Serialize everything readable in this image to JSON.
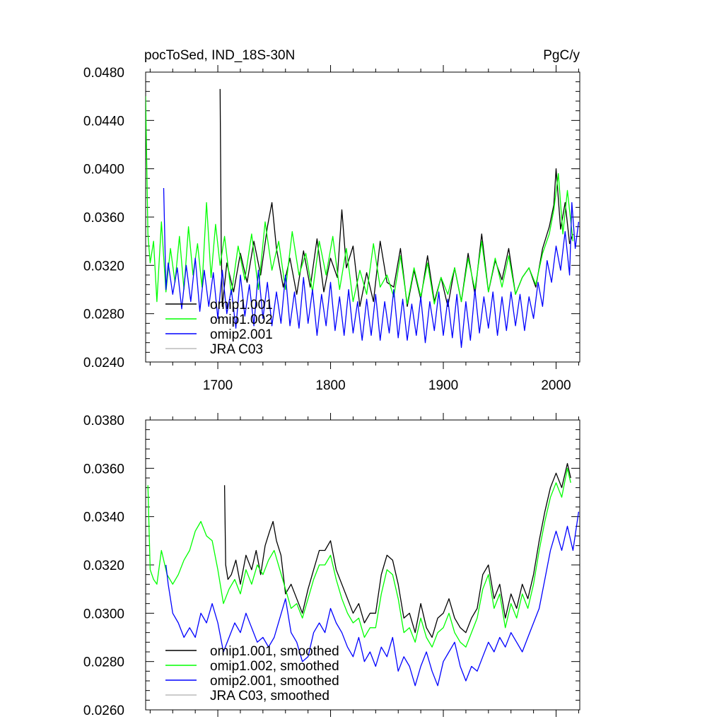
{
  "title": "pocToSed, IND_18S-30N",
  "units": "PgC/y",
  "chart_data": [
    {
      "type": "line",
      "xlim": [
        1636,
        2021
      ],
      "ylim": [
        0.024,
        0.048
      ],
      "xticks": [
        1700,
        1800,
        1900,
        2000
      ],
      "xtick_labels": [
        "1700",
        "1800",
        "1900",
        "2000"
      ],
      "yticks": [
        0.024,
        0.028,
        0.032,
        0.036,
        0.04,
        0.044,
        0.048
      ],
      "ytick_labels": [
        "0.0240",
        "0.0280",
        "0.0320",
        "0.0360",
        "0.0400",
        "0.0440",
        "0.0480"
      ],
      "legend_position": "bottom-left",
      "series": [
        {
          "name": "omip1.001",
          "color": "#000000",
          "x": [
            1702,
            1703,
            1704,
            1708,
            1714,
            1720,
            1726,
            1732,
            1738,
            1744,
            1748,
            1752,
            1758,
            1764,
            1770,
            1776,
            1782,
            1788,
            1794,
            1800,
            1806,
            1810,
            1814,
            1820,
            1826,
            1832,
            1838,
            1844,
            1850,
            1856,
            1862,
            1868,
            1874,
            1880,
            1886,
            1892,
            1898,
            1904,
            1910,
            1916,
            1922,
            1928,
            1934,
            1940,
            1946,
            1952,
            1958,
            1964,
            1970,
            1976,
            1982,
            1988,
            1994,
            1998,
            2000,
            2004,
            2008,
            2012,
            2015
          ],
          "y": [
            0.0466,
            0.0336,
            0.0286,
            0.0322,
            0.0298,
            0.033,
            0.0306,
            0.034,
            0.0312,
            0.0352,
            0.0372,
            0.0334,
            0.0302,
            0.0326,
            0.0296,
            0.0332,
            0.0302,
            0.0342,
            0.0298,
            0.0326,
            0.031,
            0.0366,
            0.0318,
            0.0336,
            0.0286,
            0.0314,
            0.029,
            0.034,
            0.0306,
            0.0302,
            0.0334,
            0.0286,
            0.0316,
            0.0292,
            0.0328,
            0.029,
            0.031,
            0.0286,
            0.0318,
            0.029,
            0.033,
            0.0296,
            0.0346,
            0.0298,
            0.0324,
            0.0308,
            0.0334,
            0.0296,
            0.031,
            0.0318,
            0.0302,
            0.0334,
            0.0352,
            0.037,
            0.04,
            0.035,
            0.0372,
            0.0338,
            0.0346
          ]
        },
        {
          "name": "omip1.002",
          "color": "#00ff00",
          "x": [
            1636,
            1638,
            1640,
            1643,
            1646,
            1650,
            1654,
            1658,
            1662,
            1666,
            1670,
            1674,
            1678,
            1682,
            1686,
            1690,
            1694,
            1698,
            1702,
            1706,
            1712,
            1718,
            1724,
            1730,
            1736,
            1742,
            1748,
            1754,
            1760,
            1766,
            1772,
            1778,
            1784,
            1790,
            1796,
            1802,
            1808,
            1814,
            1820,
            1826,
            1832,
            1838,
            1844,
            1850,
            1856,
            1862,
            1868,
            1874,
            1880,
            1886,
            1892,
            1898,
            1904,
            1910,
            1916,
            1922,
            1928,
            1934,
            1940,
            1946,
            1952,
            1958,
            1964,
            1970,
            1976,
            1982,
            1988,
            1994,
            1998,
            2002,
            2006,
            2010,
            2015
          ],
          "y": [
            0.046,
            0.0346,
            0.0322,
            0.034,
            0.029,
            0.0356,
            0.0298,
            0.0334,
            0.0306,
            0.0344,
            0.03,
            0.0352,
            0.0312,
            0.0338,
            0.0302,
            0.0372,
            0.031,
            0.0354,
            0.032,
            0.0344,
            0.0296,
            0.0336,
            0.0308,
            0.0346,
            0.03,
            0.0356,
            0.0316,
            0.034,
            0.03,
            0.0348,
            0.0312,
            0.033,
            0.0298,
            0.034,
            0.0312,
            0.0344,
            0.03,
            0.0334,
            0.029,
            0.0316,
            0.0296,
            0.0338,
            0.0302,
            0.0312,
            0.0294,
            0.0328,
            0.0288,
            0.0318,
            0.0294,
            0.0322,
            0.0288,
            0.031,
            0.0296,
            0.0318,
            0.029,
            0.0326,
            0.03,
            0.034,
            0.0298,
            0.0326,
            0.0302,
            0.0328,
            0.0296,
            0.031,
            0.0318,
            0.0304,
            0.033,
            0.0346,
            0.0366,
            0.0396,
            0.0346,
            0.0382,
            0.034
          ]
        },
        {
          "name": "omip2.001",
          "color": "#0000ff",
          "x": [
            1652,
            1654,
            1656,
            1660,
            1664,
            1668,
            1672,
            1676,
            1680,
            1684,
            1688,
            1692,
            1696,
            1700,
            1704,
            1708,
            1712,
            1716,
            1720,
            1724,
            1728,
            1732,
            1736,
            1740,
            1744,
            1748,
            1752,
            1756,
            1760,
            1764,
            1768,
            1772,
            1776,
            1780,
            1784,
            1788,
            1792,
            1796,
            1800,
            1804,
            1808,
            1812,
            1816,
            1820,
            1824,
            1828,
            1832,
            1836,
            1840,
            1844,
            1848,
            1852,
            1856,
            1860,
            1864,
            1868,
            1872,
            1876,
            1880,
            1884,
            1888,
            1892,
            1896,
            1900,
            1904,
            1908,
            1912,
            1916,
            1920,
            1924,
            1928,
            1932,
            1936,
            1940,
            1944,
            1948,
            1952,
            1956,
            1960,
            1964,
            1968,
            1972,
            1976,
            1980,
            1984,
            1988,
            1992,
            1996,
            2000,
            2004,
            2008,
            2012,
            2014,
            2017,
            2020
          ],
          "y": [
            0.0384,
            0.03,
            0.0322,
            0.0296,
            0.0318,
            0.0284,
            0.032,
            0.029,
            0.0326,
            0.0282,
            0.0316,
            0.0286,
            0.0314,
            0.0276,
            0.0316,
            0.028,
            0.03,
            0.0268,
            0.0312,
            0.0278,
            0.0304,
            0.027,
            0.0316,
            0.0276,
            0.0306,
            0.027,
            0.0298,
            0.0272,
            0.0312,
            0.027,
            0.0298,
            0.0268,
            0.031,
            0.0272,
            0.03,
            0.0262,
            0.0296,
            0.027,
            0.0306,
            0.0266,
            0.0294,
            0.0262,
            0.03,
            0.0264,
            0.029,
            0.0258,
            0.0292,
            0.0262,
            0.0296,
            0.0258,
            0.029,
            0.0264,
            0.03,
            0.026,
            0.0292,
            0.0258,
            0.0288,
            0.0262,
            0.0294,
            0.0256,
            0.029,
            0.0266,
            0.0298,
            0.0262,
            0.0292,
            0.026,
            0.0296,
            0.0252,
            0.029,
            0.0258,
            0.03,
            0.0264,
            0.0294,
            0.0268,
            0.0298,
            0.0262,
            0.0294,
            0.0266,
            0.0298,
            0.027,
            0.0296,
            0.0266,
            0.0294,
            0.0276,
            0.0306,
            0.0286,
            0.0324,
            0.0306,
            0.0336,
            0.0316,
            0.0348,
            0.0312,
            0.0372,
            0.0334,
            0.0356
          ]
        },
        {
          "name": "JRA C03",
          "color": "#bbbbbb",
          "x": [],
          "y": []
        }
      ]
    },
    {
      "type": "line",
      "xlim": [
        1636,
        2021
      ],
      "ylim": [
        0.026,
        0.038
      ],
      "xticks": [
        1700,
        1800,
        1900,
        2000
      ],
      "yticks": [
        0.026,
        0.028,
        0.03,
        0.032,
        0.034,
        0.036,
        0.038
      ],
      "ytick_labels": [
        "0.0260",
        "0.0280",
        "0.0300",
        "0.0320",
        "0.0340",
        "0.0360",
        "0.0380"
      ],
      "legend_position": "bottom-left",
      "series": [
        {
          "name": "omip1.001, smoothed",
          "color": "#000000",
          "x": [
            1706,
            1707,
            1709,
            1712,
            1716,
            1720,
            1725,
            1730,
            1734,
            1738,
            1742,
            1746,
            1749,
            1752,
            1756,
            1760,
            1765,
            1770,
            1775,
            1780,
            1785,
            1790,
            1795,
            1800,
            1805,
            1810,
            1815,
            1820,
            1825,
            1830,
            1835,
            1840,
            1845,
            1850,
            1855,
            1860,
            1865,
            1870,
            1875,
            1880,
            1885,
            1890,
            1895,
            1900,
            1905,
            1910,
            1915,
            1920,
            1925,
            1930,
            1935,
            1940,
            1945,
            1950,
            1955,
            1960,
            1965,
            1970,
            1975,
            1980,
            1985,
            1990,
            1995,
            2000,
            2005,
            2010,
            2013
          ],
          "y": [
            0.0353,
            0.032,
            0.0314,
            0.0316,
            0.0322,
            0.0312,
            0.0324,
            0.0318,
            0.0326,
            0.0316,
            0.0328,
            0.0334,
            0.0338,
            0.033,
            0.0324,
            0.0308,
            0.0312,
            0.0306,
            0.03,
            0.031,
            0.0318,
            0.0326,
            0.0326,
            0.033,
            0.0318,
            0.0312,
            0.0306,
            0.03,
            0.0304,
            0.0296,
            0.03,
            0.03,
            0.0316,
            0.0324,
            0.0322,
            0.0312,
            0.0298,
            0.03,
            0.0292,
            0.0304,
            0.0294,
            0.029,
            0.0298,
            0.03,
            0.0306,
            0.0298,
            0.0294,
            0.0292,
            0.0298,
            0.0302,
            0.0316,
            0.032,
            0.0306,
            0.0312,
            0.0298,
            0.0308,
            0.0302,
            0.0312,
            0.0306,
            0.0316,
            0.033,
            0.0342,
            0.0352,
            0.0358,
            0.0352,
            0.0362,
            0.0356
          ]
        },
        {
          "name": "omip1.002, smoothed",
          "color": "#00ff00",
          "x": [
            1638,
            1640,
            1643,
            1646,
            1650,
            1655,
            1660,
            1665,
            1670,
            1675,
            1680,
            1685,
            1690,
            1695,
            1700,
            1705,
            1710,
            1715,
            1720,
            1725,
            1730,
            1735,
            1740,
            1745,
            1750,
            1755,
            1760,
            1765,
            1770,
            1775,
            1780,
            1785,
            1790,
            1795,
            1800,
            1805,
            1810,
            1815,
            1820,
            1825,
            1830,
            1835,
            1840,
            1845,
            1850,
            1855,
            1860,
            1865,
            1870,
            1875,
            1880,
            1885,
            1890,
            1895,
            1900,
            1905,
            1910,
            1915,
            1920,
            1925,
            1930,
            1935,
            1940,
            1945,
            1950,
            1955,
            1960,
            1965,
            1970,
            1975,
            1980,
            1985,
            1990,
            1995,
            2000,
            2005,
            2010,
            2013
          ],
          "y": [
            0.0353,
            0.0318,
            0.0314,
            0.0312,
            0.0326,
            0.0316,
            0.0312,
            0.0316,
            0.0322,
            0.0326,
            0.0334,
            0.0338,
            0.0332,
            0.033,
            0.0318,
            0.0304,
            0.031,
            0.0314,
            0.0308,
            0.0318,
            0.0312,
            0.032,
            0.0316,
            0.0322,
            0.0326,
            0.0318,
            0.031,
            0.0302,
            0.0304,
            0.0298,
            0.0306,
            0.0314,
            0.032,
            0.032,
            0.0324,
            0.0314,
            0.0306,
            0.03,
            0.0296,
            0.0298,
            0.029,
            0.0294,
            0.0294,
            0.0308,
            0.0318,
            0.0316,
            0.0306,
            0.0292,
            0.0294,
            0.0288,
            0.0298,
            0.029,
            0.0286,
            0.0292,
            0.0294,
            0.03,
            0.0292,
            0.0288,
            0.0286,
            0.0292,
            0.0298,
            0.031,
            0.0316,
            0.0302,
            0.0308,
            0.0294,
            0.0304,
            0.0298,
            0.0308,
            0.0302,
            0.0312,
            0.0326,
            0.0338,
            0.0348,
            0.0354,
            0.0348,
            0.036,
            0.0354
          ]
        },
        {
          "name": "omip2.001, smoothed",
          "color": "#0000ff",
          "x": [
            1654,
            1656,
            1660,
            1665,
            1670,
            1675,
            1680,
            1685,
            1690,
            1695,
            1700,
            1705,
            1710,
            1715,
            1720,
            1725,
            1730,
            1735,
            1740,
            1745,
            1750,
            1755,
            1760,
            1765,
            1770,
            1775,
            1780,
            1785,
            1790,
            1795,
            1800,
            1805,
            1810,
            1815,
            1820,
            1825,
            1830,
            1835,
            1840,
            1845,
            1850,
            1855,
            1860,
            1865,
            1870,
            1875,
            1880,
            1885,
            1890,
            1895,
            1900,
            1905,
            1910,
            1915,
            1920,
            1925,
            1930,
            1935,
            1940,
            1945,
            1950,
            1955,
            1960,
            1965,
            1970,
            1975,
            1980,
            1985,
            1990,
            1995,
            2000,
            2005,
            2010,
            2015,
            2020
          ],
          "y": [
            0.032,
            0.0312,
            0.03,
            0.0296,
            0.029,
            0.0294,
            0.029,
            0.03,
            0.0296,
            0.0304,
            0.0296,
            0.0284,
            0.029,
            0.0296,
            0.0292,
            0.03,
            0.0294,
            0.0288,
            0.029,
            0.0286,
            0.029,
            0.0298,
            0.0306,
            0.0292,
            0.0288,
            0.028,
            0.0282,
            0.0292,
            0.0296,
            0.0292,
            0.0302,
            0.0296,
            0.0292,
            0.0286,
            0.0282,
            0.029,
            0.028,
            0.0284,
            0.0278,
            0.0286,
            0.0282,
            0.029,
            0.0276,
            0.0282,
            0.0278,
            0.027,
            0.0278,
            0.0284,
            0.0276,
            0.027,
            0.028,
            0.0284,
            0.0288,
            0.0278,
            0.0272,
            0.0278,
            0.0276,
            0.0282,
            0.0288,
            0.0284,
            0.029,
            0.0286,
            0.0292,
            0.0288,
            0.0284,
            0.029,
            0.0296,
            0.0302,
            0.0314,
            0.0326,
            0.0334,
            0.0326,
            0.0336,
            0.0326,
            0.0342
          ]
        },
        {
          "name": "JRA C03, smoothed",
          "color": "#bbbbbb",
          "x": [],
          "y": []
        }
      ]
    }
  ]
}
